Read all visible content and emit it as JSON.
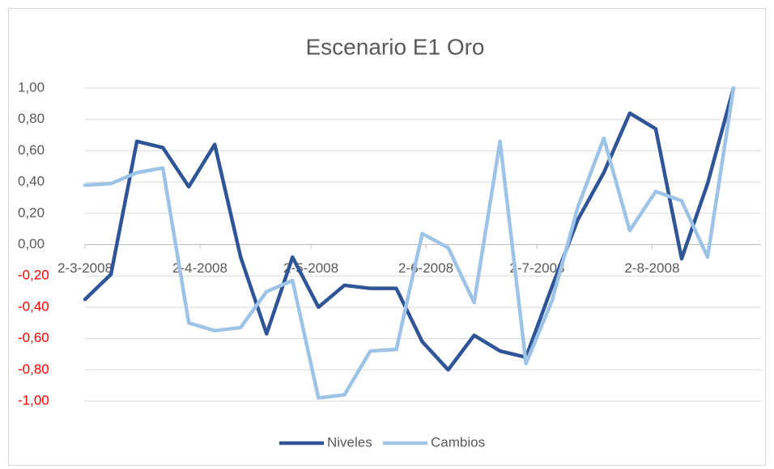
{
  "chart_data": {
    "type": "line",
    "title": "Escenario E1 Oro",
    "series": [
      {
        "name": "Niveles",
        "color": "#2f5597",
        "values": [
          -0.35,
          -0.19,
          0.66,
          0.62,
          0.37,
          0.64,
          -0.08,
          -0.57,
          -0.08,
          -0.4,
          -0.26,
          -0.28,
          -0.28,
          -0.62,
          -0.8,
          -0.58,
          -0.68,
          -0.72,
          -0.27,
          0.16,
          0.46,
          0.84,
          0.74,
          -0.09,
          0.39,
          1.0
        ]
      },
      {
        "name": "Cambios",
        "color": "#9dc3e6",
        "values": [
          0.38,
          0.39,
          0.46,
          0.49,
          -0.5,
          -0.55,
          -0.53,
          -0.3,
          -0.23,
          -0.98,
          -0.96,
          -0.68,
          -0.67,
          0.07,
          -0.02,
          -0.37,
          0.66,
          -0.76,
          -0.36,
          0.24,
          0.68,
          0.09,
          0.34,
          0.28,
          -0.08,
          1.0
        ]
      }
    ],
    "xlim": [
      0,
      25
    ],
    "xticks": [
      {
        "value": 0,
        "label": "2-3-2008"
      },
      {
        "value": 4.43,
        "label": "2-4-2008"
      },
      {
        "value": 8.71,
        "label": "2-5-2008"
      },
      {
        "value": 13.14,
        "label": "2-6-2008"
      },
      {
        "value": 17.43,
        "label": "2-7-2008"
      },
      {
        "value": 21.86,
        "label": "2-8-2008"
      }
    ],
    "ylim": [
      -1,
      1
    ],
    "yticks": [
      {
        "value": 1,
        "label": "1,00"
      },
      {
        "value": 0.8,
        "label": "0,80"
      },
      {
        "value": 0.6,
        "label": "0,60"
      },
      {
        "value": 0.4,
        "label": "0,40"
      },
      {
        "value": 0.2,
        "label": "0,20"
      },
      {
        "value": 0,
        "label": "0,00"
      },
      {
        "value": -0.2,
        "label": "-0,20"
      },
      {
        "value": -0.4,
        "label": "-0,40"
      },
      {
        "value": -0.6,
        "label": "-0,60"
      },
      {
        "value": -0.8,
        "label": "-0,80"
      },
      {
        "value": -1,
        "label": "-1,00"
      }
    ],
    "negative_tick_color": "#ff0000",
    "grid": true,
    "legend": "bottom"
  }
}
